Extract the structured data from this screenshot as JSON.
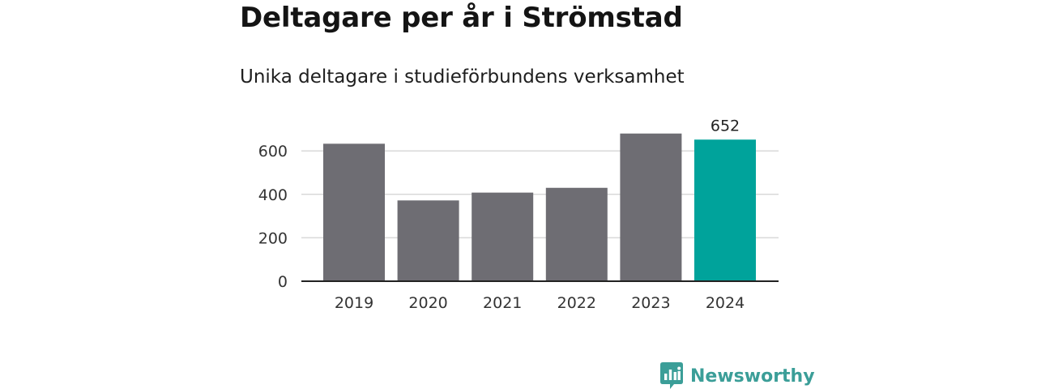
{
  "chart_title": "Deltagare per år i Strömstad",
  "chart_subtitle": "Unika deltagare i studieförbundens verksamhet",
  "brand": {
    "name": "Newsworthy",
    "logo_icon": "newsworthy-chart-bubble-icon",
    "color": "#3b9e98"
  },
  "chart_data": {
    "type": "bar",
    "categories": [
      "2019",
      "2020",
      "2021",
      "2022",
      "2023",
      "2024"
    ],
    "values": [
      633,
      372,
      408,
      430,
      680,
      652
    ],
    "title": "Deltagare per år i Strömstad",
    "subtitle": "Unika deltagare i studieförbundens verksamhet",
    "xlabel": "",
    "ylabel": "",
    "ylim": [
      0,
      700
    ],
    "yticks": [
      0,
      200,
      400,
      600
    ],
    "grid": true,
    "legend": "none",
    "data_labels": [
      {
        "category": "2024",
        "label": "652"
      }
    ],
    "highlight_category": "2024",
    "colors": {
      "bar": "#6e6d73",
      "highlight": "#00a39b",
      "grid": "#d9d9d9",
      "axis": "#222222",
      "tick_text": "#333333"
    }
  }
}
